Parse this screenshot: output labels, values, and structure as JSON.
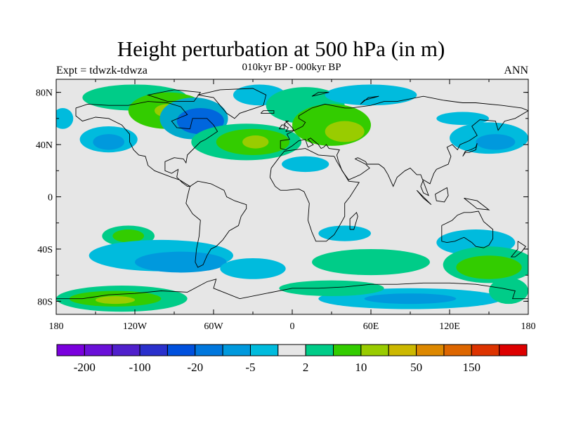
{
  "title": "Height perturbation at 500 hPa (in m)",
  "left_string": "Expt = tdwzk-tdwza",
  "center_string": "010kyr BP - 000kyr BP",
  "right_string": "ANN",
  "map": {
    "projection": "cylindrical-equidistant",
    "lon_range": [
      -180,
      180
    ],
    "lat_range": [
      -90,
      90
    ],
    "background_color": "#e6e6e6",
    "lat_ticks": [
      {
        "lat": 80,
        "label": "80N"
      },
      {
        "lat": 40,
        "label": "40N"
      },
      {
        "lat": 0,
        "label": "0"
      },
      {
        "lat": -40,
        "label": "40S"
      },
      {
        "lat": -80,
        "label": "80S"
      }
    ],
    "lon_ticks": [
      {
        "lon": -180,
        "label": "180"
      },
      {
        "lon": -120,
        "label": "120W"
      },
      {
        "lon": -60,
        "label": "60W"
      },
      {
        "lon": 0,
        "label": "0"
      },
      {
        "lon": 60,
        "label": "60E"
      },
      {
        "lon": 120,
        "label": "120E"
      },
      {
        "lon": 180,
        "label": "180"
      }
    ],
    "anomaly_regions": [
      {
        "lon": -120,
        "lat": 76,
        "rx": 40,
        "ry": 10,
        "color": "#00cc88"
      },
      {
        "lon": -95,
        "lat": 66,
        "rx": 30,
        "ry": 14,
        "color": "#33cc00"
      },
      {
        "lon": -95,
        "lat": 66,
        "rx": 10,
        "ry": 5,
        "color": "#99cc00"
      },
      {
        "lon": -75,
        "lat": 60,
        "rx": 26,
        "ry": 16,
        "color": "#00aacc"
      },
      {
        "lon": -70,
        "lat": 58,
        "rx": 18,
        "ry": 10,
        "color": "#0066dd"
      },
      {
        "lon": -140,
        "lat": 44,
        "rx": 22,
        "ry": 10,
        "color": "#00bbdd"
      },
      {
        "lon": -140,
        "lat": 42,
        "rx": 12,
        "ry": 6,
        "color": "#0099dd"
      },
      {
        "lon": -175,
        "lat": 60,
        "rx": 8,
        "ry": 8,
        "color": "#00bbdd"
      },
      {
        "lon": -35,
        "lat": 42,
        "rx": 42,
        "ry": 14,
        "color": "#00cc88"
      },
      {
        "lon": -30,
        "lat": 42,
        "rx": 28,
        "ry": 10,
        "color": "#33cc00"
      },
      {
        "lon": -28,
        "lat": 42,
        "rx": 10,
        "ry": 5,
        "color": "#99cc00"
      },
      {
        "lon": -25,
        "lat": 78,
        "rx": 20,
        "ry": 8,
        "color": "#00bbdd"
      },
      {
        "lon": 10,
        "lat": 70,
        "rx": 30,
        "ry": 14,
        "color": "#00cc88"
      },
      {
        "lon": 30,
        "lat": 55,
        "rx": 30,
        "ry": 16,
        "color": "#33cc00"
      },
      {
        "lon": 40,
        "lat": 50,
        "rx": 15,
        "ry": 8,
        "color": "#99cc00"
      },
      {
        "lon": 60,
        "lat": 78,
        "rx": 35,
        "ry": 8,
        "color": "#00bbdd"
      },
      {
        "lon": 10,
        "lat": 25,
        "rx": 18,
        "ry": 6,
        "color": "#00bbdd"
      },
      {
        "lon": 150,
        "lat": 45,
        "rx": 30,
        "ry": 12,
        "color": "#00bbdd"
      },
      {
        "lon": 155,
        "lat": 42,
        "rx": 15,
        "ry": 6,
        "color": "#0099dd"
      },
      {
        "lon": 130,
        "lat": 60,
        "rx": 20,
        "ry": 5,
        "color": "#00bbdd"
      },
      {
        "lon": 140,
        "lat": -35,
        "rx": 30,
        "ry": 10,
        "color": "#00bbdd"
      },
      {
        "lon": 40,
        "lat": -28,
        "rx": 20,
        "ry": 6,
        "color": "#00bbdd"
      },
      {
        "lon": -125,
        "lat": -30,
        "rx": 20,
        "ry": 8,
        "color": "#00cc88"
      },
      {
        "lon": -125,
        "lat": -30,
        "rx": 12,
        "ry": 5,
        "color": "#33cc00"
      },
      {
        "lon": -100,
        "lat": -45,
        "rx": 55,
        "ry": 12,
        "color": "#00bbdd"
      },
      {
        "lon": -85,
        "lat": -50,
        "rx": 35,
        "ry": 8,
        "color": "#0099dd"
      },
      {
        "lon": -30,
        "lat": -55,
        "rx": 25,
        "ry": 8,
        "color": "#00bbdd"
      },
      {
        "lon": 60,
        "lat": -50,
        "rx": 45,
        "ry": 10,
        "color": "#00cc88"
      },
      {
        "lon": 150,
        "lat": -52,
        "rx": 35,
        "ry": 14,
        "color": "#00cc88"
      },
      {
        "lon": 150,
        "lat": -54,
        "rx": 25,
        "ry": 9,
        "color": "#33cc00"
      },
      {
        "lon": -130,
        "lat": -78,
        "rx": 50,
        "ry": 10,
        "color": "#00cc88"
      },
      {
        "lon": -135,
        "lat": -78,
        "rx": 35,
        "ry": 6,
        "color": "#33cc00"
      },
      {
        "lon": -135,
        "lat": -79,
        "rx": 15,
        "ry": 3,
        "color": "#99cc00"
      },
      {
        "lon": 90,
        "lat": -78,
        "rx": 70,
        "ry": 8,
        "color": "#00bbdd"
      },
      {
        "lon": 90,
        "lat": -78,
        "rx": 35,
        "ry": 4,
        "color": "#0099dd"
      },
      {
        "lon": 30,
        "lat": -70,
        "rx": 40,
        "ry": 6,
        "color": "#00cc88"
      },
      {
        "lon": 165,
        "lat": -72,
        "rx": 15,
        "ry": 10,
        "color": "#00cc88"
      }
    ]
  },
  "colorbar": {
    "colors": [
      "#7a00dd",
      "#6a10d8",
      "#5020cc",
      "#2a30cc",
      "#0050dd",
      "#0077dd",
      "#0099dd",
      "#00bbdd",
      "#e6e6e6",
      "#00cc88",
      "#33cc00",
      "#99cc00",
      "#ccb800",
      "#dd8800",
      "#dd6600",
      "#dd3300",
      "#dd0000"
    ],
    "labels": [
      {
        "after_box": 1,
        "text": "-200"
      },
      {
        "after_box": 3,
        "text": "-100"
      },
      {
        "after_box": 5,
        "text": "-20"
      },
      {
        "after_box": 7,
        "text": "-5"
      },
      {
        "after_box": 9,
        "text": "2"
      },
      {
        "after_box": 11,
        "text": "10"
      },
      {
        "after_box": 13,
        "text": "50"
      },
      {
        "after_box": 15,
        "text": "150"
      }
    ]
  }
}
